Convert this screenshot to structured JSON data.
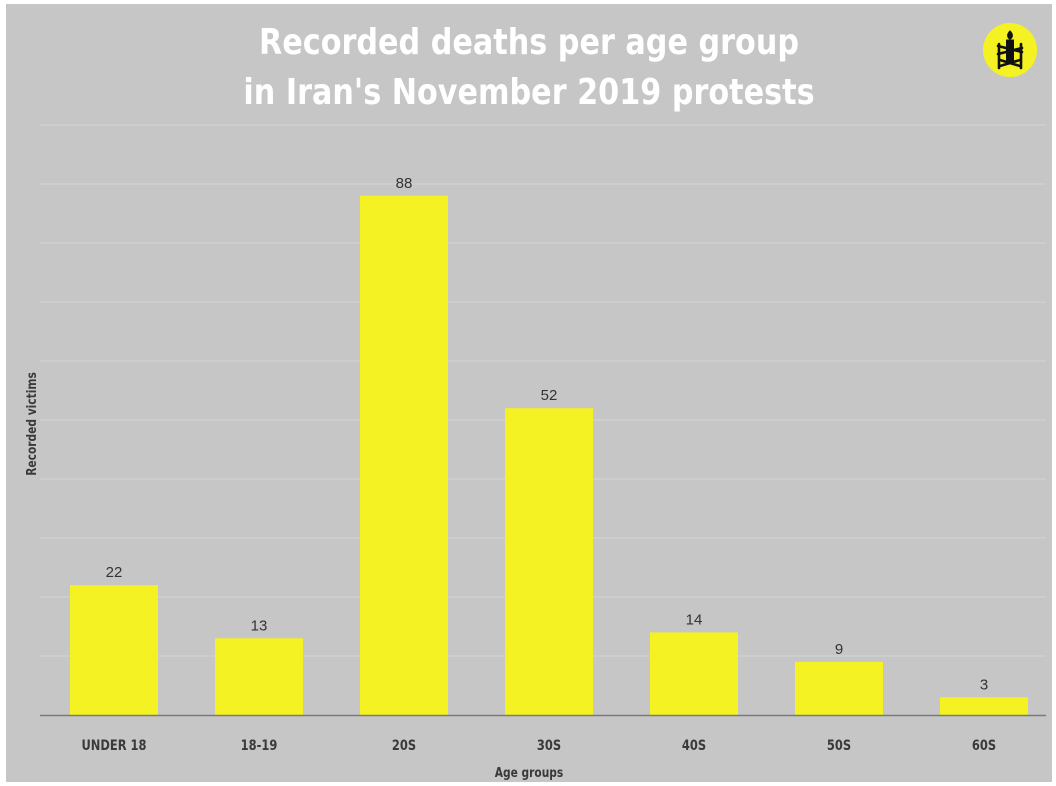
{
  "title_lines": [
    "Recorded deaths per age group",
    "in Iran's November 2019 protests"
  ],
  "logo": {
    "icon": "candle-in-barbed-wire-icon",
    "background": "#f5f224",
    "color": "#111111"
  },
  "colors": {
    "background": "#c6c6c6",
    "bar": "#f5f224",
    "gridline": "#d4d4d4",
    "axis": "#7a7a7a",
    "text": "#333333"
  },
  "chart_data": {
    "type": "bar",
    "title": "Recorded deaths per age group in Iran's November 2019 protests",
    "xlabel": "Age groups",
    "ylabel": "Recorded victims",
    "categories": [
      "UNDER 18",
      "18-19",
      "20S",
      "30S",
      "40S",
      "50S",
      "60S"
    ],
    "values": [
      22,
      13,
      88,
      52,
      14,
      9,
      3
    ],
    "ylim": [
      0,
      100
    ],
    "grid": true,
    "legend": "none"
  }
}
